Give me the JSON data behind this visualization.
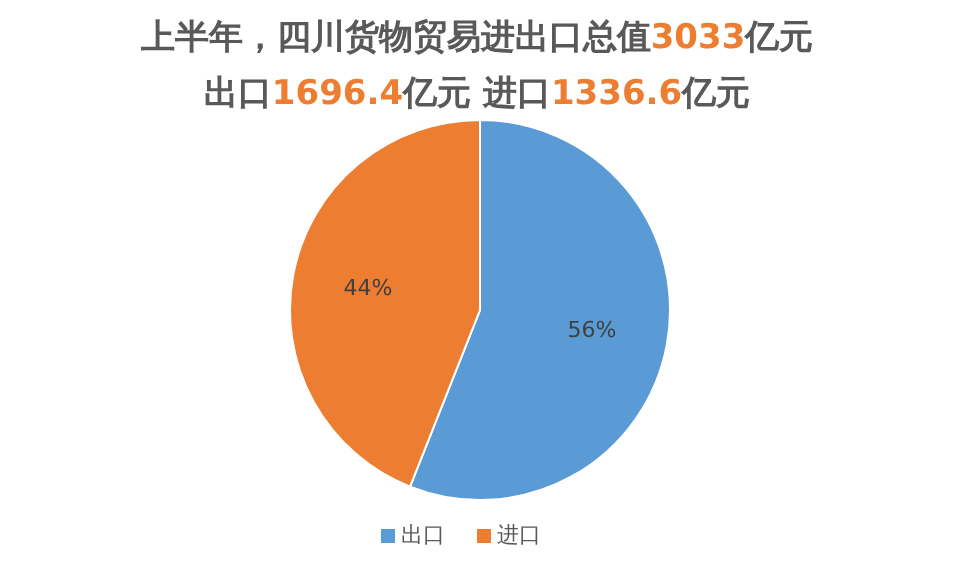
{
  "chart_data": {
    "type": "pie",
    "title": "上半年，四川货物贸易进出口总值3033亿元",
    "subtitle": "出口1696.4亿元 进口1336.6亿元",
    "categories": [
      "出口",
      "进口"
    ],
    "values": [
      56,
      44
    ],
    "colors": [
      "#5b9bd5",
      "#ed7d31"
    ],
    "value_labels": [
      "56%",
      "44%"
    ],
    "legend": "bottom"
  }
}
